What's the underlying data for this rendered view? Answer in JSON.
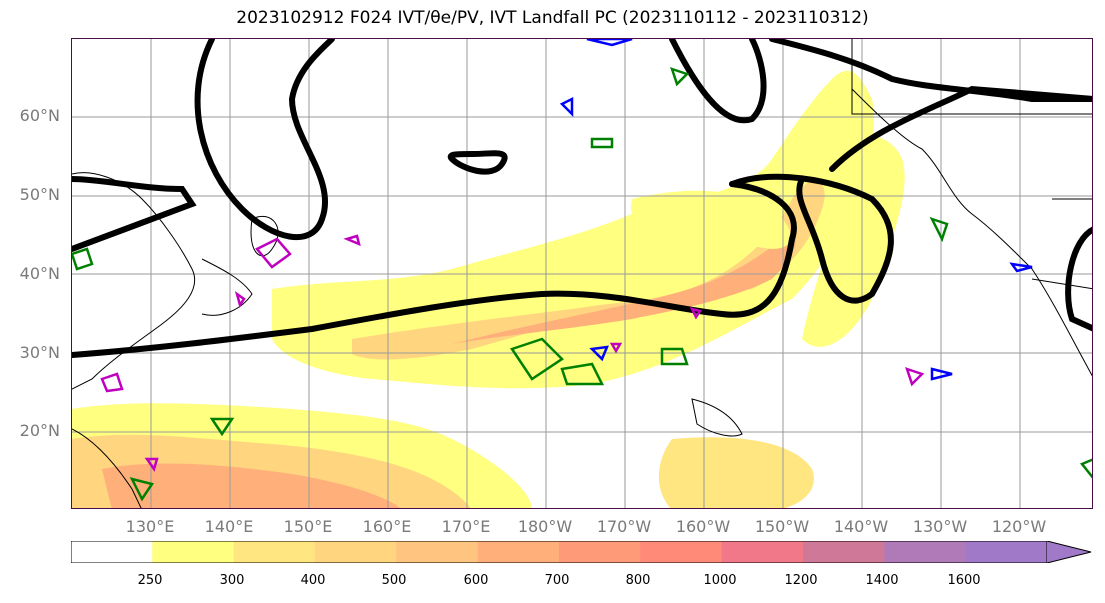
{
  "title": "2023102912 F024 IVT/θe/PV, IVT Landfall PC (2023110112 - 2023110312)",
  "map": {
    "lat_labels": [
      "60°N",
      "50°N",
      "40°N",
      "30°N",
      "20°N"
    ],
    "lon_labels": [
      "130°E",
      "140°E",
      "150°E",
      "160°E",
      "170°E",
      "180°W",
      "170°W",
      "160°W",
      "150°W",
      "140°W",
      "130°W",
      "120°W"
    ],
    "colors": {
      "ivt_contour": "#000000",
      "pv_positive": "#008000",
      "pv_negative": "#0000ff",
      "theta_e": "#c000c0",
      "grid": "#9a9a9a"
    }
  },
  "colorbar": {
    "levels": [
      "250",
      "300",
      "400",
      "500",
      "600",
      "700",
      "800",
      "1000",
      "1200",
      "1400",
      "1600"
    ],
    "colors": [
      "#ffffff",
      "#ffff80",
      "#ffe680",
      "#ffd580",
      "#ffc580",
      "#ffb07a",
      "#ff9a78",
      "#ff8a78",
      "#f07888",
      "#d07898",
      "#b07ab8",
      "#a07ac8"
    ]
  }
}
